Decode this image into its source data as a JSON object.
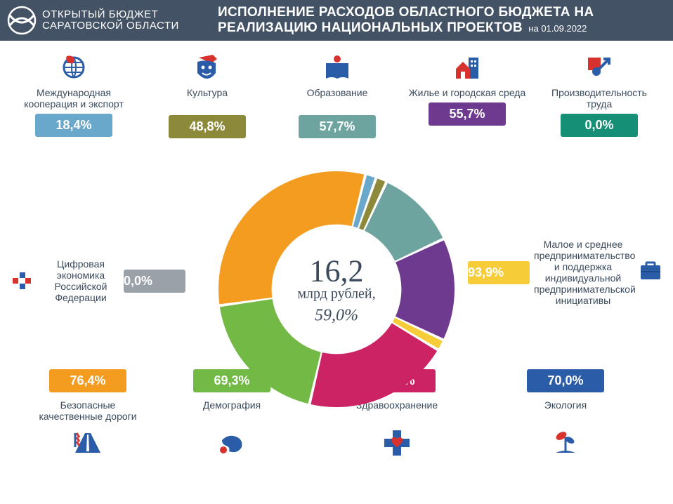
{
  "header": {
    "logo_line1": "ОТКРЫТЫЙ БЮДЖЕТ",
    "logo_line2": "САРАТОВСКОЙ ОБЛАСТИ",
    "title_line1": "ИСПОЛНЕНИЕ РАСХОДОВ ОБЛАСТНОГО БЮДЖЕТА НА",
    "title_line2": "РЕАЛИЗАЦИЮ НАЦИОНАЛЬНЫХ ПРОЕКТОВ",
    "date": "на 01.09.2022",
    "bg": "#435265"
  },
  "center": {
    "amount": "16,2",
    "unit": "млрд рублей,",
    "pct": "59,0%"
  },
  "donut": {
    "slices": [
      {
        "label": "orange-roads",
        "value": 31,
        "color": "#f39c1f"
      },
      {
        "label": "blue-intl",
        "value": 1.5,
        "color": "#6aa8cb"
      },
      {
        "label": "olive-culture",
        "value": 1.5,
        "color": "#8c8a3a"
      },
      {
        "label": "teal-education",
        "value": 11,
        "color": "#6ea4a0"
      },
      {
        "label": "purple-housing",
        "value": 14,
        "color": "#6d3a8f"
      },
      {
        "label": "yellow-business",
        "value": 1.5,
        "color": "#f6cd38"
      },
      {
        "label": "magenta-health",
        "value": 20,
        "color": "#cc2365"
      },
      {
        "label": "green-demography",
        "value": 19,
        "color": "#72b946"
      }
    ],
    "start_angle_deg": 172,
    "inner_r": 0.55
  },
  "items": {
    "intl": {
      "label": "Международная кооперация и экспорт",
      "pct": "18,4%",
      "color": "#6aa8cb"
    },
    "culture": {
      "label": "Культура",
      "pct": "48,8%",
      "color": "#8c8a3a"
    },
    "education": {
      "label": "Образование",
      "pct": "57,7%",
      "color": "#6ea4a0"
    },
    "housing": {
      "label": "Жилье и городская среда",
      "pct": "55,7%",
      "color": "#6d3a8f"
    },
    "labor": {
      "label": "Производительность труда",
      "pct": "0,0%",
      "color": "#168f77"
    },
    "digital": {
      "label": "Цифровая экономика Российской Федерации",
      "pct": "0,0%",
      "color": "#9aa1a9"
    },
    "business": {
      "label": "Малое и среднее предпринимательство и поддержка индивидуальной предпринимательской инициативы",
      "pct": "93,9%",
      "color": "#f6cd38"
    },
    "roads": {
      "label": "Безопасные качественные дороги",
      "pct": "76,4%",
      "color": "#f39c1f"
    },
    "demography": {
      "label": "Демография",
      "pct": "69,3%",
      "color": "#72b946"
    },
    "health": {
      "label": "Здравоохранение",
      "pct": "42,8%",
      "color": "#cc2365"
    },
    "ecology": {
      "label": "Экология",
      "pct": "70,0%",
      "color": "#2a5ca8"
    }
  },
  "palette": {
    "text": "#3a4a5c",
    "red": "#d7322e",
    "blue": "#2a5ca8"
  }
}
